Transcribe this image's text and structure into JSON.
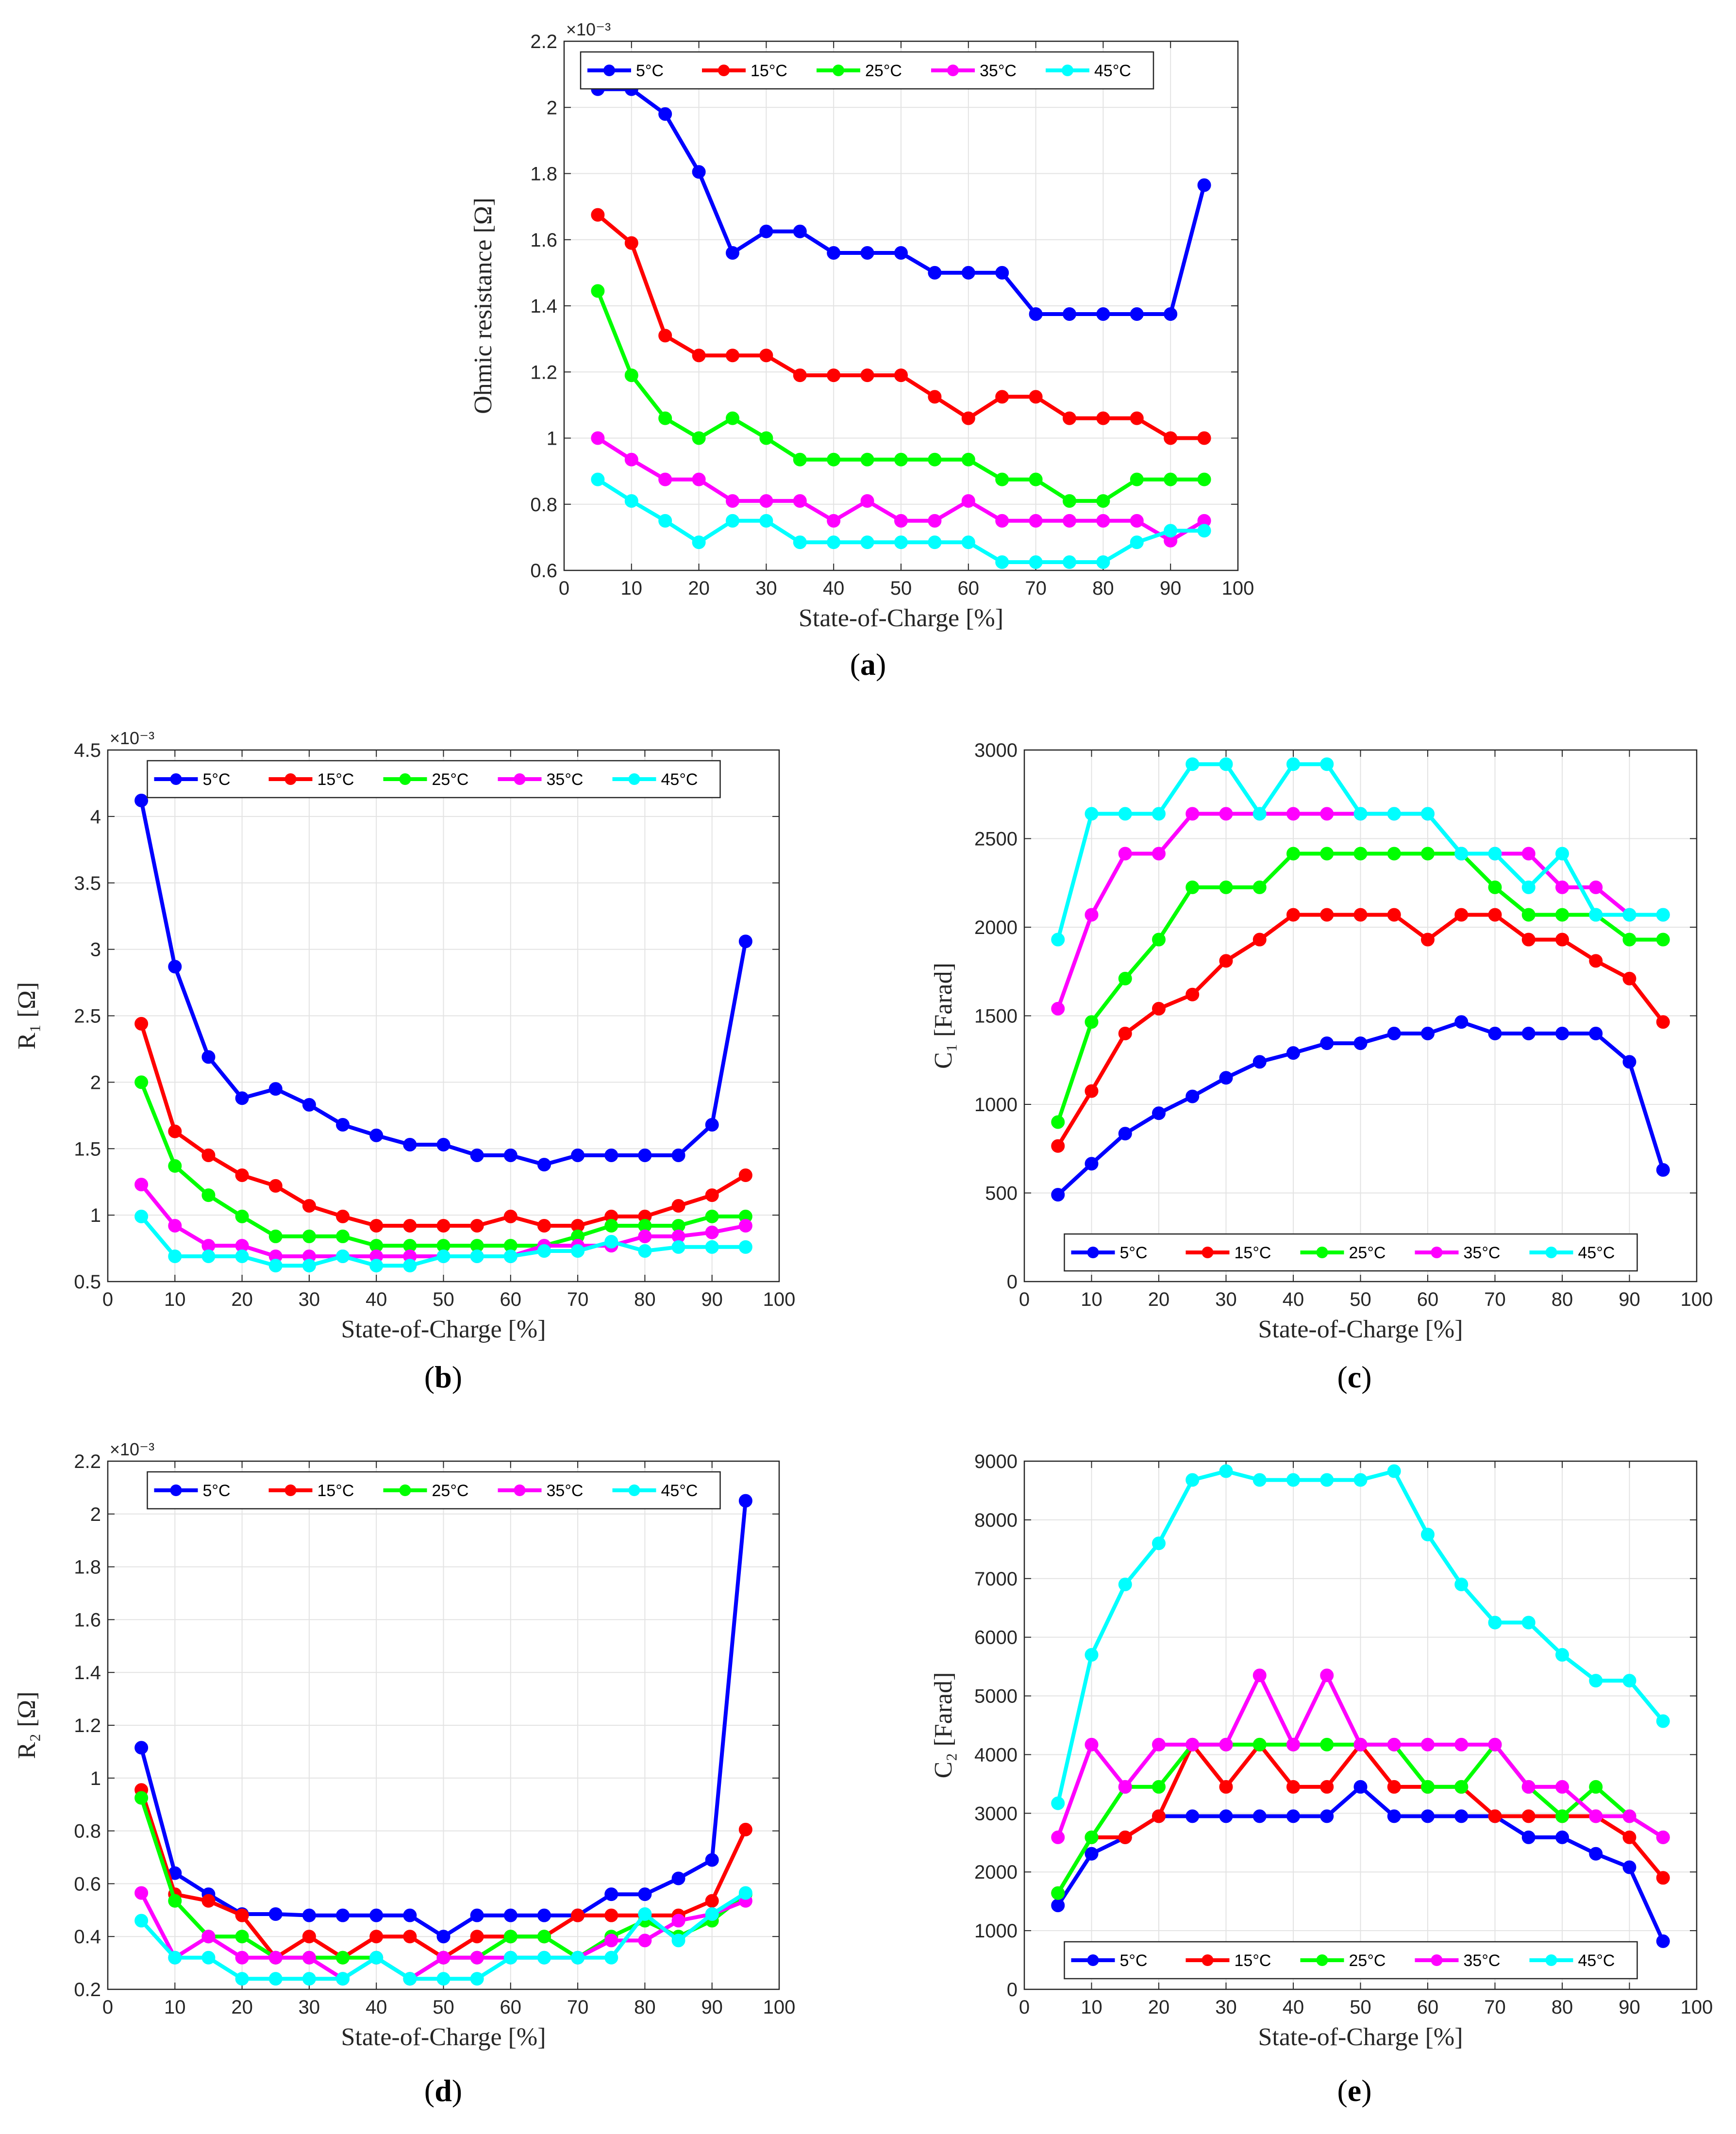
{
  "chart_data": [
    {
      "type": "line",
      "panel": "a",
      "caption_letter": "a",
      "ylabel": "Ohmic resistance [Ω]",
      "xlabel": "State-of-Charge [%]",
      "exponent": "×10⁻³",
      "legend_position": "top",
      "ylim": [
        0.6,
        2.2
      ],
      "yticks": [
        0.6,
        0.8,
        1,
        1.2,
        1.4,
        1.6,
        1.8,
        2,
        2.2
      ],
      "xlim": [
        0,
        100
      ],
      "xticks": [
        0,
        10,
        20,
        30,
        40,
        50,
        60,
        70,
        80,
        90,
        100
      ],
      "x": [
        5,
        10,
        15,
        20,
        25,
        30,
        35,
        40,
        45,
        50,
        55,
        60,
        65,
        70,
        75,
        80,
        85,
        90,
        95
      ],
      "series": [
        {
          "name": "5°C",
          "color": "#0000ff",
          "values": [
            2.055,
            2.055,
            1.98,
            1.805,
            1.56,
            1.625,
            1.625,
            1.56,
            1.56,
            1.56,
            1.5,
            1.5,
            1.5,
            1.375,
            1.375,
            1.375,
            1.375,
            1.375,
            1.765
          ]
        },
        {
          "name": "15°C",
          "color": "#ff0000",
          "values": [
            1.675,
            1.59,
            1.31,
            1.25,
            1.25,
            1.25,
            1.19,
            1.19,
            1.19,
            1.19,
            1.125,
            1.06,
            1.125,
            1.125,
            1.06,
            1.06,
            1.06,
            1.0,
            1.0
          ]
        },
        {
          "name": "25°C",
          "color": "#00ff00",
          "values": [
            1.445,
            1.19,
            1.06,
            1.0,
            1.06,
            1.0,
            0.935,
            0.935,
            0.935,
            0.935,
            0.935,
            0.935,
            0.875,
            0.875,
            0.81,
            0.81,
            0.875,
            0.875,
            0.875
          ]
        },
        {
          "name": "35°C",
          "color": "#ff00ff",
          "values": [
            1.0,
            0.935,
            0.875,
            0.875,
            0.81,
            0.81,
            0.81,
            0.75,
            0.81,
            0.75,
            0.75,
            0.81,
            0.75,
            0.75,
            0.75,
            0.75,
            0.75,
            0.69,
            0.75
          ]
        },
        {
          "name": "45°C",
          "color": "#00ffff",
          "values": [
            0.875,
            0.81,
            0.75,
            0.685,
            0.75,
            0.75,
            0.685,
            0.685,
            0.685,
            0.685,
            0.685,
            0.685,
            0.625,
            0.625,
            0.625,
            0.625,
            0.685,
            0.72,
            0.72
          ]
        }
      ]
    },
    {
      "type": "line",
      "panel": "b",
      "caption_letter": "b",
      "ylabel": "R₁ [Ω]",
      "xlabel": "State-of-Charge [%]",
      "exponent": "×10⁻³",
      "legend_position": "top",
      "ylim": [
        0.5,
        4.5
      ],
      "yticks": [
        0.5,
        1,
        1.5,
        2,
        2.5,
        3,
        3.5,
        4,
        4.5
      ],
      "xlim": [
        0,
        100
      ],
      "xticks": [
        0,
        10,
        20,
        30,
        40,
        50,
        60,
        70,
        80,
        90,
        100
      ],
      "x": [
        5,
        10,
        15,
        20,
        25,
        30,
        35,
        40,
        45,
        50,
        55,
        60,
        65,
        70,
        75,
        80,
        85,
        90,
        95
      ],
      "series": [
        {
          "name": "5°C",
          "color": "#0000ff",
          "values": [
            4.12,
            2.87,
            2.19,
            1.88,
            1.95,
            1.83,
            1.68,
            1.6,
            1.53,
            1.53,
            1.45,
            1.45,
            1.38,
            1.45,
            1.45,
            1.45,
            1.45,
            1.68,
            3.06
          ]
        },
        {
          "name": "15°C",
          "color": "#ff0000",
          "values": [
            2.44,
            1.63,
            1.45,
            1.3,
            1.22,
            1.07,
            0.99,
            0.92,
            0.92,
            0.92,
            0.92,
            0.99,
            0.92,
            0.92,
            0.99,
            0.99,
            1.07,
            1.15,
            1.3
          ]
        },
        {
          "name": "25°C",
          "color": "#00ff00",
          "values": [
            2.0,
            1.37,
            1.15,
            0.99,
            0.84,
            0.84,
            0.84,
            0.77,
            0.77,
            0.77,
            0.77,
            0.77,
            0.77,
            0.84,
            0.92,
            0.92,
            0.92,
            0.99,
            0.99
          ]
        },
        {
          "name": "35°C",
          "color": "#ff00ff",
          "values": [
            1.23,
            0.92,
            0.77,
            0.77,
            0.69,
            0.69,
            0.69,
            0.69,
            0.69,
            0.69,
            0.69,
            0.69,
            0.77,
            0.77,
            0.77,
            0.84,
            0.84,
            0.87,
            0.92
          ]
        },
        {
          "name": "45°C",
          "color": "#00ffff",
          "values": [
            0.99,
            0.69,
            0.69,
            0.69,
            0.62,
            0.62,
            0.69,
            0.62,
            0.62,
            0.69,
            0.69,
            0.69,
            0.73,
            0.73,
            0.8,
            0.73,
            0.76,
            0.76,
            0.76
          ]
        }
      ]
    },
    {
      "type": "line",
      "panel": "c",
      "caption_letter": "c",
      "ylabel": "C₁ [Farad]",
      "xlabel": "State-of-Charge [%]",
      "exponent": "",
      "legend_position": "bottom",
      "ylim": [
        0,
        3000
      ],
      "yticks": [
        0,
        500,
        1000,
        1500,
        2000,
        2500,
        3000
      ],
      "xlim": [
        0,
        100
      ],
      "xticks": [
        0,
        10,
        20,
        30,
        40,
        50,
        60,
        70,
        80,
        90,
        100
      ],
      "x": [
        5,
        10,
        15,
        20,
        25,
        30,
        35,
        40,
        45,
        50,
        55,
        60,
        65,
        70,
        75,
        80,
        85,
        90,
        95
      ],
      "series": [
        {
          "name": "5°C",
          "color": "#0000ff",
          "values": [
            490,
            665,
            835,
            950,
            1045,
            1150,
            1240,
            1290,
            1345,
            1345,
            1400,
            1400,
            1465,
            1400,
            1400,
            1400,
            1400,
            1240,
            630
          ]
        },
        {
          "name": "15°C",
          "color": "#ff0000",
          "values": [
            765,
            1075,
            1400,
            1540,
            1620,
            1810,
            1930,
            2070,
            2070,
            2070,
            2070,
            1930,
            2070,
            2070,
            1930,
            1930,
            1810,
            1710,
            1465
          ]
        },
        {
          "name": "25°C",
          "color": "#00ff00",
          "values": [
            900,
            1465,
            1710,
            1930,
            2225,
            2225,
            2225,
            2415,
            2415,
            2415,
            2415,
            2415,
            2415,
            2225,
            2070,
            2070,
            2070,
            1930,
            1930
          ]
        },
        {
          "name": "35°C",
          "color": "#ff00ff",
          "values": [
            1540,
            2070,
            2415,
            2415,
            2640,
            2640,
            2640,
            2640,
            2640,
            2640,
            2640,
            2640,
            2415,
            2415,
            2415,
            2225,
            2225,
            2070,
            2070
          ]
        },
        {
          "name": "45°C",
          "color": "#00ffff",
          "values": [
            1930,
            2640,
            2640,
            2640,
            2920,
            2920,
            2640,
            2920,
            2920,
            2640,
            2640,
            2640,
            2415,
            2415,
            2225,
            2415,
            2070,
            2070,
            2070
          ]
        }
      ]
    },
    {
      "type": "line",
      "panel": "d",
      "caption_letter": "d",
      "ylabel": "R₂ [Ω]",
      "xlabel": "State-of-Charge [%]",
      "exponent": "×10⁻³",
      "legend_position": "top",
      "ylim": [
        0.2,
        2.2
      ],
      "yticks": [
        0.2,
        0.4,
        0.6,
        0.8,
        1,
        1.2,
        1.4,
        1.6,
        1.8,
        2,
        2.2
      ],
      "xlim": [
        0,
        100
      ],
      "xticks": [
        0,
        10,
        20,
        30,
        40,
        50,
        60,
        70,
        80,
        90,
        100
      ],
      "x": [
        5,
        10,
        15,
        20,
        25,
        30,
        35,
        40,
        45,
        50,
        55,
        60,
        65,
        70,
        75,
        80,
        85,
        90,
        95
      ],
      "series": [
        {
          "name": "5°C",
          "color": "#0000ff",
          "values": [
            1.115,
            0.64,
            0.56,
            0.485,
            0.485,
            0.48,
            0.48,
            0.48,
            0.48,
            0.4,
            0.48,
            0.48,
            0.48,
            0.48,
            0.56,
            0.56,
            0.62,
            0.69,
            2.05
          ]
        },
        {
          "name": "15°C",
          "color": "#ff0000",
          "values": [
            0.955,
            0.56,
            0.535,
            0.48,
            0.32,
            0.4,
            0.32,
            0.4,
            0.4,
            0.32,
            0.4,
            0.4,
            0.4,
            0.48,
            0.48,
            0.48,
            0.48,
            0.535,
            0.805
          ]
        },
        {
          "name": "25°C",
          "color": "#00ff00",
          "values": [
            0.925,
            0.535,
            0.4,
            0.4,
            0.32,
            0.32,
            0.32,
            0.32,
            0.24,
            0.32,
            0.32,
            0.4,
            0.4,
            0.32,
            0.4,
            0.46,
            0.4,
            0.46,
            0.56
          ]
        },
        {
          "name": "35°C",
          "color": "#ff00ff",
          "values": [
            0.565,
            0.32,
            0.4,
            0.32,
            0.32,
            0.32,
            0.24,
            0.32,
            0.24,
            0.32,
            0.32,
            0.32,
            0.32,
            0.32,
            0.385,
            0.385,
            0.46,
            0.485,
            0.535
          ]
        },
        {
          "name": "45°C",
          "color": "#00ffff",
          "values": [
            0.46,
            0.32,
            0.32,
            0.24,
            0.24,
            0.24,
            0.24,
            0.32,
            0.24,
            0.24,
            0.24,
            0.32,
            0.32,
            0.32,
            0.32,
            0.485,
            0.385,
            0.485,
            0.565
          ]
        }
      ]
    },
    {
      "type": "line",
      "panel": "e",
      "caption_letter": "e",
      "ylabel": "C₂ [Farad]",
      "xlabel": "State-of-Charge [%]",
      "exponent": "",
      "legend_position": "bottom",
      "ylim": [
        0,
        9000
      ],
      "yticks": [
        0,
        1000,
        2000,
        3000,
        4000,
        5000,
        6000,
        7000,
        8000,
        9000
      ],
      "xlim": [
        0,
        100
      ],
      "xticks": [
        0,
        10,
        20,
        30,
        40,
        50,
        60,
        70,
        80,
        90,
        100
      ],
      "x": [
        5,
        10,
        15,
        20,
        25,
        30,
        35,
        40,
        45,
        50,
        55,
        60,
        65,
        70,
        75,
        80,
        85,
        90,
        95
      ],
      "series": [
        {
          "name": "5°C",
          "color": "#0000ff",
          "values": [
            1430,
            2310,
            2590,
            2950,
            2950,
            2950,
            2950,
            2950,
            2950,
            3450,
            2950,
            2950,
            2950,
            2950,
            2590,
            2590,
            2310,
            2080,
            820
          ]
        },
        {
          "name": "15°C",
          "color": "#ff0000",
          "values": [
            1640,
            2590,
            2590,
            2950,
            4170,
            3450,
            4170,
            3450,
            3450,
            4170,
            3450,
            3450,
            3450,
            2950,
            2950,
            2950,
            2950,
            2590,
            1900
          ]
        },
        {
          "name": "25°C",
          "color": "#00ff00",
          "values": [
            1640,
            2590,
            3450,
            3450,
            4170,
            4170,
            4170,
            4170,
            4170,
            4170,
            4170,
            3450,
            3450,
            4170,
            3450,
            2950,
            3450,
            2950,
            2590
          ]
        },
        {
          "name": "35°C",
          "color": "#ff00ff",
          "values": [
            2590,
            4170,
            3450,
            4170,
            4170,
            4170,
            5350,
            4170,
            5350,
            4170,
            4170,
            4170,
            4170,
            4170,
            3450,
            3450,
            2950,
            2950,
            2590
          ]
        },
        {
          "name": "45°C",
          "color": "#00ffff",
          "values": [
            3170,
            5700,
            6900,
            7600,
            8680,
            8830,
            8680,
            8680,
            8680,
            8680,
            8830,
            7750,
            6900,
            6250,
            6250,
            5700,
            5260,
            5260,
            4570
          ]
        }
      ]
    }
  ]
}
